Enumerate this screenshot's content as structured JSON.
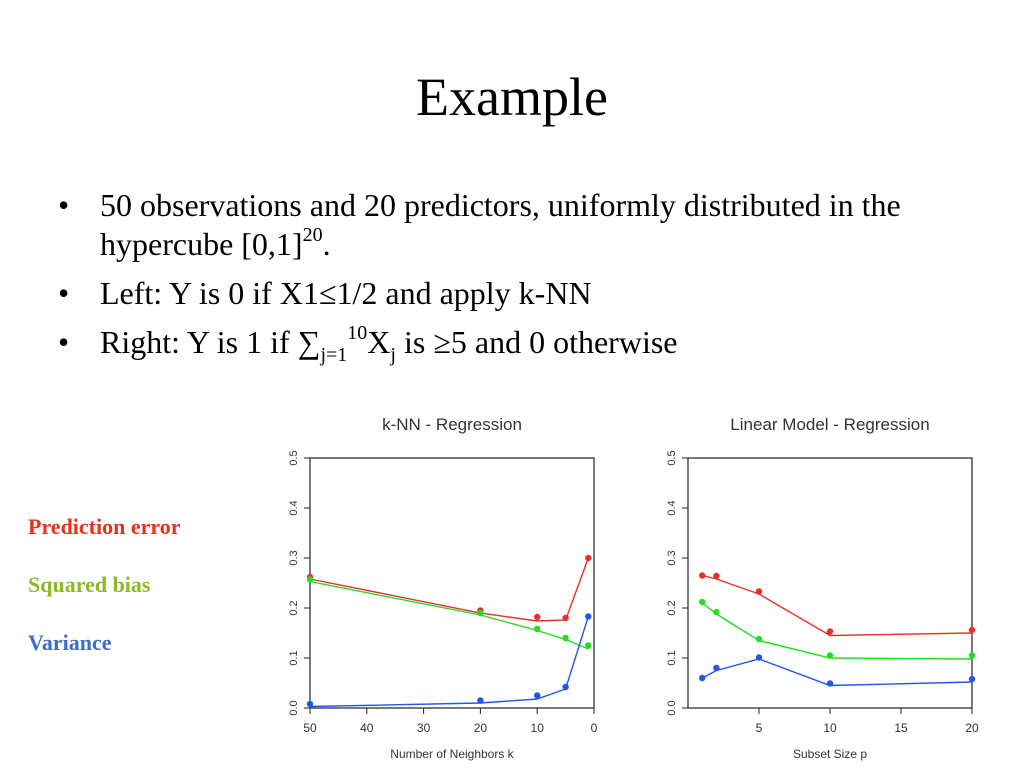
{
  "slide": {
    "title": "Example",
    "bullets": {
      "b1_text": "50 observations and 20 predictors, uniformly distributed in the hypercube [0,1]",
      "b1_sup": "20",
      "b1_end": ".",
      "b2_text": "Left: Y is 0 if X1≤1/2 and apply k-NN",
      "b3_pre": "Right: Y is 1 if ∑",
      "b3_sub": "j=1",
      "b3_sup": "10",
      "b3_x": "X",
      "b3_sub2": "j",
      "b3_post": " is ≥5 and 0 otherwise"
    },
    "bullet_char": "•"
  },
  "legend": {
    "prediction_error": "Prediction error",
    "squared_bias": "Squared bias",
    "variance": "Variance"
  },
  "colors": {
    "prediction_error": "#e8302a",
    "squared_bias": "#22dd22",
    "variance": "#2255ee",
    "legend_prediction_error": "#e8301c",
    "legend_squared_bias": "#8db822",
    "legend_variance": "#3b6cc6"
  },
  "chart_data": [
    {
      "type": "line",
      "title": "k-NN - Regression",
      "xlabel": "Number of Neighbors k",
      "ylabel": "",
      "xlim": [
        50,
        0
      ],
      "ylim": [
        0,
        0.5
      ],
      "x_ticks": [
        50,
        40,
        30,
        20,
        10,
        0
      ],
      "y_ticks": [
        "0.0",
        "0.1",
        "0.2",
        "0.3",
        "0.4",
        "0.5"
      ],
      "series": [
        {
          "key": "prediction_error",
          "points": [
            [
              50,
              0.262
            ],
            [
              20,
              0.195
            ],
            [
              10,
              0.182
            ],
            [
              5,
              0.18
            ],
            [
              1,
              0.3
            ]
          ],
          "line": [
            [
              50,
              0.258
            ],
            [
              20,
              0.19
            ],
            [
              10,
              0.174
            ],
            [
              5,
              0.176
            ],
            [
              1,
              0.3
            ]
          ]
        },
        {
          "key": "squared_bias",
          "points": [
            [
              50,
              0.257
            ],
            [
              20,
              0.19
            ],
            [
              10,
              0.158
            ],
            [
              5,
              0.14
            ],
            [
              1,
              0.125
            ]
          ],
          "line": [
            [
              50,
              0.253
            ],
            [
              20,
              0.186
            ],
            [
              10,
              0.155
            ],
            [
              5,
              0.137
            ],
            [
              1,
              0.118
            ]
          ]
        },
        {
          "key": "variance",
          "points": [
            [
              50,
              0.008
            ],
            [
              20,
              0.015
            ],
            [
              10,
              0.025
            ],
            [
              5,
              0.042
            ],
            [
              1,
              0.183
            ]
          ],
          "line": [
            [
              50,
              0.003
            ],
            [
              20,
              0.01
            ],
            [
              10,
              0.018
            ],
            [
              5,
              0.038
            ],
            [
              1,
              0.183
            ]
          ]
        }
      ]
    },
    {
      "type": "line",
      "title": "Linear Model - Regression",
      "xlabel": "Subset Size p",
      "ylabel": "",
      "xlim": [
        0,
        20
      ],
      "ylim": [
        0,
        0.5
      ],
      "x_ticks": [
        5,
        10,
        15,
        20
      ],
      "y_ticks": [
        "0.0",
        "0.1",
        "0.2",
        "0.3",
        "0.4",
        "0.5"
      ],
      "series": [
        {
          "key": "prediction_error",
          "points": [
            [
              1,
              0.265
            ],
            [
              2,
              0.264
            ],
            [
              5,
              0.233
            ],
            [
              10,
              0.153
            ],
            [
              20,
              0.156
            ]
          ],
          "line": [
            [
              1,
              0.265
            ],
            [
              2,
              0.258
            ],
            [
              5,
              0.228
            ],
            [
              10,
              0.145
            ],
            [
              20,
              0.15
            ]
          ]
        },
        {
          "key": "squared_bias",
          "points": [
            [
              1,
              0.212
            ],
            [
              2,
              0.192
            ],
            [
              5,
              0.138
            ],
            [
              10,
              0.105
            ],
            [
              20,
              0.105
            ]
          ],
          "line": [
            [
              1,
              0.21
            ],
            [
              2,
              0.188
            ],
            [
              5,
              0.135
            ],
            [
              10,
              0.1
            ],
            [
              20,
              0.098
            ]
          ]
        },
        {
          "key": "variance",
          "points": [
            [
              1,
              0.06
            ],
            [
              2,
              0.08
            ],
            [
              5,
              0.101
            ],
            [
              10,
              0.049
            ],
            [
              20,
              0.058
            ]
          ],
          "line": [
            [
              1,
              0.06
            ],
            [
              2,
              0.075
            ],
            [
              5,
              0.098
            ],
            [
              10,
              0.045
            ],
            [
              20,
              0.052
            ]
          ]
        }
      ]
    }
  ]
}
